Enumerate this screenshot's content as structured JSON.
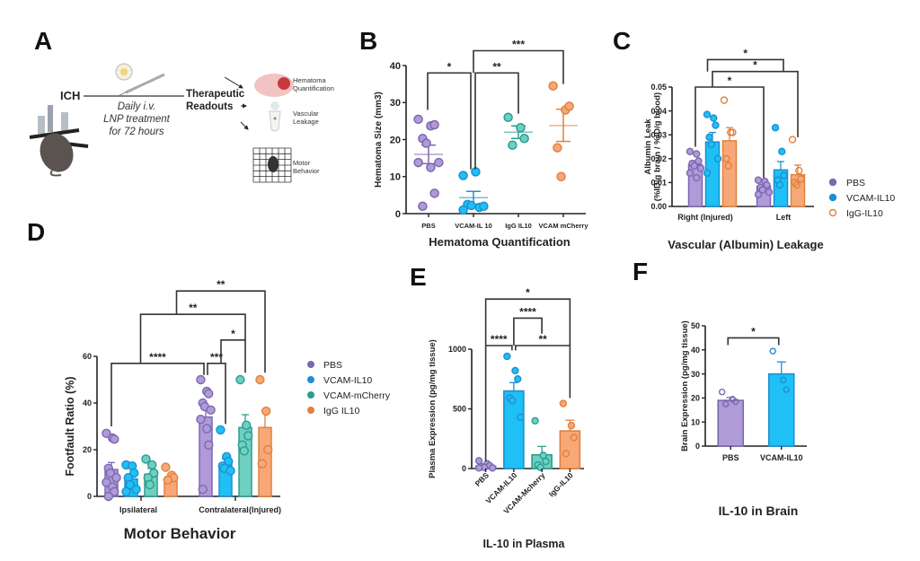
{
  "panels": {
    "A": {
      "label": "A",
      "start": "ICH",
      "treatment": [
        "Daily i.v.",
        "LNP treatment",
        "for 72 hours"
      ],
      "readouts_title": [
        "Therapeutic",
        "Readouts"
      ],
      "readouts": [
        {
          "lines": [
            "Hematoma",
            "Quantification"
          ],
          "icon": "brain-section-icon"
        },
        {
          "lines": [
            "Vascular",
            "Leakage"
          ],
          "icon": "tube-icon"
        },
        {
          "lines": [
            "Motor",
            "Behavior"
          ],
          "icon": "grid-icon"
        }
      ]
    },
    "B": {
      "label": "B"
    },
    "C": {
      "label": "C"
    },
    "D": {
      "label": "D"
    },
    "E": {
      "label": "E"
    },
    "F": {
      "label": "F"
    }
  },
  "colors": {
    "PBS": "#7b68b0",
    "PBS_fill": "#b09ad8",
    "VCAM-IL10": "#1e8fd0",
    "VCAM-IL10_fill": "#1ec0f5",
    "VCAM-mCherry": "#2a9d92",
    "VCAM-mCherry_fill": "#6fd0c0",
    "IgG-IL10": "#e0813d",
    "IgG-IL10_fill": "#f8a878"
  },
  "chart_data": [
    {
      "id": "B",
      "type": "scatter",
      "title": "Hematoma Quantification",
      "ylabel": "Hematoma Size (mm3)",
      "ylim": [
        0,
        40
      ],
      "yticks": [
        0,
        10,
        20,
        30,
        40
      ],
      "categories": [
        "PBS",
        "VCAM-IL 10",
        "IgG IL10",
        "VCAM mCherry"
      ],
      "series": [
        {
          "name": "PBS",
          "color_key": "PBS",
          "mean": 16,
          "sem_low": 13.5,
          "sem_high": 18.5,
          "points": [
            25.5,
            23.7,
            24,
            20.3,
            19,
            13.8,
            13.8,
            12.5,
            5.5,
            2
          ]
        },
        {
          "name": "VCAM-IL 10",
          "color_key": "VCAM-IL10",
          "mean": 4.3,
          "sem_low": 2.5,
          "sem_high": 6,
          "points": [
            10.3,
            11.3,
            1.7,
            2.5,
            2.2,
            2,
            1
          ]
        },
        {
          "name": "IgG IL10",
          "color_key": "VCAM-mCherry",
          "mean": 22,
          "sem_low": 20.3,
          "sem_high": 23.7,
          "points": [
            26,
            23.2,
            20.3,
            18.5
          ]
        },
        {
          "name": "VCAM mCherry",
          "color_key": "IgG-IL10",
          "mean": 23.8,
          "sem_low": 19.5,
          "sem_high": 28.2,
          "points": [
            34.5,
            28,
            29,
            17.8,
            10
          ]
        }
      ],
      "significance": [
        {
          "from": 0,
          "to": 1,
          "label": "*",
          "level": 0
        },
        {
          "from": 1,
          "to": 2,
          "label": "**",
          "level": 0
        },
        {
          "from": 1,
          "to": 3,
          "label": "***",
          "level": 1
        }
      ]
    },
    {
      "id": "C",
      "type": "bar",
      "title": "Vascular (Albumin) Leakage",
      "ylabel": [
        "Albumin Leak",
        "(%ID/g brain / %ID/g blood)"
      ],
      "ylim": [
        0,
        0.05
      ],
      "yticks": [
        "0.00",
        "0.01",
        "0.02",
        "0.03",
        "0.04",
        "0.05"
      ],
      "categories": [
        "Right (Injured)",
        "Left"
      ],
      "legend": [
        "PBS",
        "VCAM-IL10",
        "IgG-IL10"
      ],
      "legend_position": "right",
      "series": [
        {
          "name": "PBS",
          "color_key": "PBS",
          "values": [
            0.0175,
            0.0085
          ],
          "errors": [
            0.0015,
            0.0008
          ],
          "points": [
            [
              0.023,
              0.022,
              0.019,
              0.018,
              0.017,
              0.016,
              0.014,
              0.012
            ],
            [
              0.011,
              0.0105,
              0.009,
              0.008,
              0.007,
              0.006,
              0.005
            ]
          ]
        },
        {
          "name": "VCAM-IL10",
          "color_key": "VCAM-IL10",
          "values": [
            0.027,
            0.0153
          ],
          "errors": [
            0.004,
            0.0035
          ],
          "points": [
            [
              0.0385,
              0.037,
              0.034,
              0.029,
              0.026,
              0.02,
              0.014
            ],
            [
              0.033,
              0.023,
              0.013,
              0.011,
              0.009
            ]
          ]
        },
        {
          "name": "IgG-IL10",
          "color_key": "IgG-IL10",
          "values": [
            0.0275,
            0.0133
          ],
          "errors": [
            0.0055,
            0.004
          ],
          "points": [
            [
              0.0445,
              0.031,
              0.031,
              0.02,
              0.017
            ],
            [
              0.028,
              0.015,
              0.0115,
              0.01,
              0.009
            ]
          ]
        }
      ],
      "significance": [
        {
          "from": [
            0,
            0
          ],
          "to": [
            1,
            0
          ],
          "label": "*",
          "level": 0
        },
        {
          "from": [
            0,
            1
          ],
          "to": [
            1,
            1
          ],
          "label": "*",
          "level": 1
        },
        {
          "from": [
            0,
            2
          ],
          "to": [
            1,
            2
          ],
          "label": "*",
          "level": 2
        }
      ]
    },
    {
      "id": "D",
      "type": "bar",
      "title": "Motor Behavior",
      "ylabel": "Footfault Ratio (%)",
      "ylim": [
        0,
        60
      ],
      "yticks": [
        0,
        20,
        40,
        60
      ],
      "categories": [
        "Ipsilateral",
        "Contralateral",
        "(Injured)"
      ],
      "legend": [
        "PBS",
        "VCAM-IL10",
        "VCAM-mCherry",
        "IgG IL10"
      ],
      "legend_position": "right",
      "series": [
        {
          "name": "PBS",
          "color_key": "PBS",
          "values": [
            11.5,
            34
          ],
          "errors": [
            3,
            4
          ],
          "points": [
            [
              27,
              25,
              24.5,
              12,
              10,
              8,
              6,
              4,
              2,
              0
            ],
            [
              50,
              45,
              44,
              40,
              38.5,
              37,
              33,
              29,
              22,
              3
            ]
          ]
        },
        {
          "name": "VCAM-IL10",
          "color_key": "VCAM-IL10",
          "values": [
            7.5,
            14
          ],
          "errors": [
            1.5,
            2
          ],
          "points": [
            [
              13.5,
              13,
              10,
              8,
              5,
              3,
              2
            ],
            [
              28.5,
              17,
              15,
              13,
              12,
              11
            ]
          ]
        },
        {
          "name": "VCAM-mCherry",
          "color_key": "VCAM-mCherry",
          "values": [
            9.5,
            29.5
          ],
          "errors": [
            2.5,
            5.5
          ],
          "points": [
            [
              16,
              13.5,
              10,
              8,
              5
            ],
            [
              50,
              30.5,
              26,
              22,
              19.5
            ]
          ]
        },
        {
          "name": "IgG IL10",
          "color_key": "IgG-IL10",
          "values": [
            7.5,
            29.5
          ],
          "errors": [
            2,
            7.5
          ],
          "points": [
            [
              12.5,
              9,
              8,
              7
            ],
            [
              50,
              36.5,
              20,
              14
            ]
          ]
        }
      ],
      "significance": [
        {
          "from": [
            0,
            0
          ],
          "to": [
            1,
            0
          ],
          "label": "****",
          "level": 0
        },
        {
          "from": [
            1,
            0
          ],
          "to": [
            1,
            1
          ],
          "label": "***",
          "level": 0
        },
        {
          "from": [
            1,
            1
          ],
          "to": [
            1,
            2
          ],
          "label": "*",
          "level": 1
        },
        {
          "from": [
            0,
            0
          ],
          "to": [
            1,
            2
          ],
          "label": "**",
          "level": 2
        },
        {
          "from": [
            0,
            1
          ],
          "to": [
            1,
            3
          ],
          "label": "**",
          "level": 3
        }
      ]
    },
    {
      "id": "E",
      "type": "bar",
      "title": "IL-10 in Plasma",
      "ylabel": "Plasma Expression (pg/mg tissue)",
      "ylim": [
        0,
        1000
      ],
      "yticks": [
        0,
        500,
        1000
      ],
      "categories": [
        "PBS",
        "VCAM-IL10",
        "VCAM-Mcherry",
        "IgG-IL10"
      ],
      "series": [
        {
          "name": "PBS",
          "color_key": "PBS",
          "value": 20,
          "error": 10,
          "points": [
            65,
            40,
            25,
            15,
            10,
            5,
            5
          ]
        },
        {
          "name": "VCAM-IL10",
          "color_key": "VCAM-IL10",
          "value": 650,
          "error": 70,
          "points": [
            940,
            820,
            750,
            590,
            570,
            430
          ]
        },
        {
          "name": "VCAM-Mcherry",
          "color_key": "VCAM-mCherry",
          "value": 115,
          "error": 70,
          "points": [
            400,
            110,
            60,
            30,
            10
          ]
        },
        {
          "name": "IgG-IL10",
          "color_key": "IgG-IL10",
          "value": 315,
          "error": 90,
          "points": [
            545,
            360,
            260,
            125
          ]
        }
      ],
      "significance": [
        {
          "from": 0,
          "to": 1,
          "label": "****",
          "level": 0
        },
        {
          "from": 1,
          "to": 3,
          "label": "**",
          "level": 0
        },
        {
          "from": 1,
          "to": 2,
          "label": "****",
          "level": 1
        },
        {
          "from": 0,
          "to": 3,
          "label": "*",
          "level": 2
        }
      ]
    },
    {
      "id": "F",
      "type": "bar",
      "title": "IL-10 in Brain",
      "ylabel": "Brain Expression (pg/mg tissue)",
      "ylim": [
        0,
        50
      ],
      "yticks": [
        0,
        10,
        20,
        30,
        40,
        50
      ],
      "categories": [
        "PBS",
        "VCAM-IL10"
      ],
      "series": [
        {
          "name": "PBS",
          "color_key": "PBS",
          "value": 19,
          "error": 1.2,
          "points": [
            22.5,
            19.5,
            18.5,
            17.5
          ]
        },
        {
          "name": "VCAM-IL10",
          "color_key": "VCAM-IL10",
          "value": 30,
          "error": 5,
          "points": [
            39.5,
            27.5,
            23.5
          ]
        }
      ],
      "significance": [
        {
          "from": 0,
          "to": 1,
          "label": "*",
          "level": 0
        }
      ]
    }
  ]
}
